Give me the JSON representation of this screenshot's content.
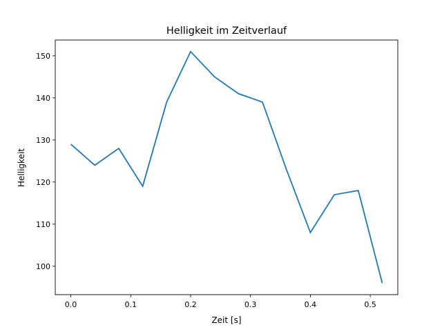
{
  "chart_data": {
    "type": "line",
    "title": "Helligkeit im Zeitverlauf",
    "xlabel": "Zeit [s]",
    "ylabel": "Helligkeit",
    "x": [
      0.0,
      0.04,
      0.08,
      0.12,
      0.16,
      0.2,
      0.24,
      0.28,
      0.32,
      0.36,
      0.4,
      0.44,
      0.48,
      0.52
    ],
    "series": [
      {
        "name": "Helligkeit",
        "color": "#1f77b4",
        "values": [
          129,
          124,
          128,
          119,
          139,
          151,
          145,
          141,
          139,
          123,
          108,
          117,
          118,
          96
        ]
      }
    ],
    "xlim": [
      -0.026,
      0.546
    ],
    "ylim": [
      93.25,
      153.75
    ],
    "xticks": [
      "0.0",
      "0.1",
      "0.2",
      "0.3",
      "0.4",
      "0.5"
    ],
    "xtick_values": [
      0,
      0.1,
      0.2,
      0.3,
      0.4,
      0.5
    ],
    "yticks": [
      "100",
      "110",
      "120",
      "130",
      "140",
      "150"
    ],
    "ytick_values": [
      100,
      110,
      120,
      130,
      140,
      150
    ],
    "grid": false
  }
}
